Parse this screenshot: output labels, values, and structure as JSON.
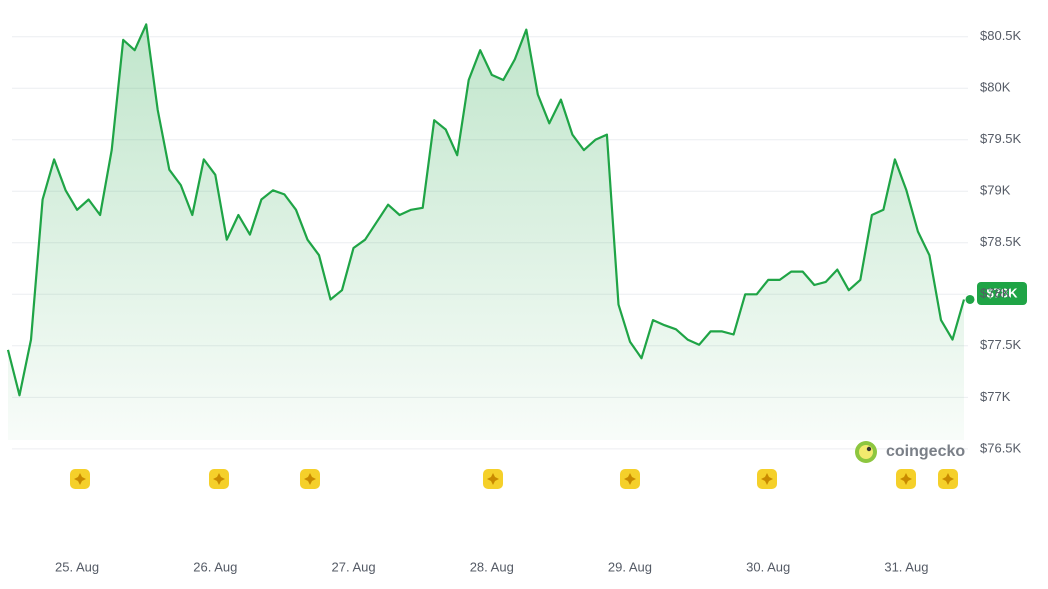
{
  "chart_data": {
    "type": "line",
    "categories": [
      null,
      null,
      null,
      null,
      null,
      null,
      "25. Aug",
      null,
      null,
      null,
      null,
      null,
      null,
      null,
      null,
      null,
      null,
      null,
      "26. Aug",
      null,
      null,
      null,
      null,
      null,
      null,
      null,
      null,
      null,
      null,
      null,
      "27. Aug",
      null,
      null,
      null,
      null,
      null,
      null,
      null,
      null,
      null,
      null,
      null,
      "28. Aug",
      null,
      null,
      null,
      null,
      null,
      null,
      null,
      null,
      null,
      null,
      null,
      "29. Aug",
      null,
      null,
      null,
      null,
      null,
      null,
      null,
      null,
      null,
      null,
      null,
      "30. Aug",
      null,
      null,
      null,
      null,
      null,
      null,
      null,
      null,
      null,
      null,
      null,
      "31. Aug",
      null,
      null,
      null,
      null,
      null
    ],
    "values": [
      77460,
      77020,
      77560,
      78920,
      79310,
      79010,
      78820,
      78920,
      78770,
      79400,
      80470,
      80370,
      80620,
      79790,
      79210,
      79060,
      78770,
      79310,
      79160,
      78530,
      78770,
      78580,
      78920,
      79010,
      78970,
      78820,
      78530,
      78380,
      77950,
      78040,
      78450,
      78530,
      78700,
      78870,
      78770,
      78820,
      78840,
      79690,
      79600,
      79350,
      80080,
      80370,
      80130,
      80080,
      80280,
      80570,
      79940,
      79660,
      79890,
      79550,
      79400,
      79500,
      79550,
      77900,
      77540,
      77380,
      77750,
      77700,
      77660,
      77560,
      77510,
      77640,
      77640,
      77610,
      78000,
      78000,
      78140,
      78140,
      78220,
      78220,
      78090,
      78120,
      78240,
      78040,
      78140,
      78770,
      78820,
      79310,
      79010,
      78610,
      78380,
      77750,
      77560,
      77950
    ],
    "color": "#1fa446",
    "ylim": [
      76440,
      80760
    ],
    "yticks": [
      {
        "value": 76500,
        "label": "$76.5K"
      },
      {
        "value": 77000,
        "label": "$77K"
      },
      {
        "value": 77500,
        "label": "$77.5K"
      },
      {
        "value": 78000,
        "label": "$78K"
      },
      {
        "value": 78500,
        "label": "$78.5K"
      },
      {
        "value": 79000,
        "label": "$79K"
      },
      {
        "value": 79500,
        "label": "$79.5K"
      },
      {
        "value": 80000,
        "label": "$80K"
      },
      {
        "value": 80500,
        "label": "$80.5K"
      }
    ],
    "grid": true,
    "current_price_label": "$78K",
    "watermark": "coingecko"
  }
}
